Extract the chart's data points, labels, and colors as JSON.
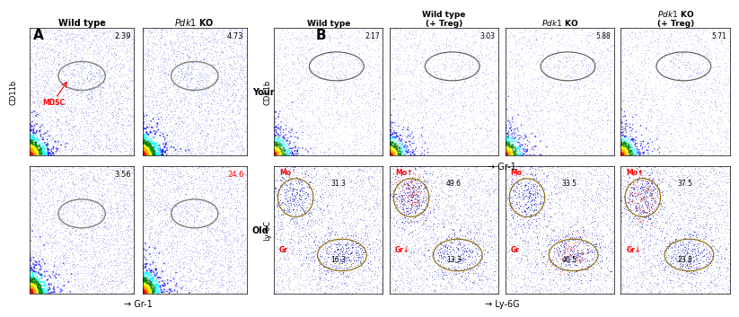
{
  "panel_A": {
    "label": "A",
    "col_headers": [
      "Wild type",
      "Pdk1 KO"
    ],
    "row_labels": [
      "Young",
      "Old"
    ],
    "percentages": [
      [
        "2.39",
        "4.73"
      ],
      [
        "3.56",
        "24.6"
      ]
    ],
    "pct_colors": [
      [
        "black",
        "black"
      ],
      [
        "black",
        "red"
      ]
    ],
    "ylabel": "CD11b",
    "xlabel": "Gr-1",
    "mdsc_label": "MDSC"
  },
  "panel_B_top": {
    "label": "B",
    "col_headers": [
      "Wild type",
      "Wild type\n(+ Treg)",
      "Pdk1 KO",
      "Pdk1 KO\n(+ Treg)"
    ],
    "percentages": [
      "2.17",
      "3.03",
      "5.88",
      "5.71"
    ],
    "ylabel": "CD11b",
    "xlabel": "Gr-1"
  },
  "panel_B_bottom": {
    "col_headers": [
      "Wild type",
      "Wild type\n(+ Treg)",
      "Pdk1 KO",
      "Pdk1 KO\n(+ Treg)"
    ],
    "mo_labels": [
      "Mo",
      "Mo↑",
      "Mo",
      "Mo↑"
    ],
    "gr_labels": [
      "Gr",
      "Gr↓",
      "Gr",
      "Gr↓"
    ],
    "mo_colors": [
      "red",
      "red",
      "red",
      "red"
    ],
    "gr_colors": [
      "red",
      "red",
      "red",
      "red"
    ],
    "mo_arrow_color": [
      "red",
      "red",
      "red",
      "red"
    ],
    "gr_arrow_color": [
      "black",
      "red",
      "black",
      "red"
    ],
    "mo_pct": [
      "31.3",
      "49.6",
      "33.5",
      "37.5"
    ],
    "gr_pct": [
      "16.3",
      "13.3",
      "46.5",
      "23.8"
    ],
    "ylabel": "Ly-6C",
    "xlabel": "Ly-6G"
  }
}
